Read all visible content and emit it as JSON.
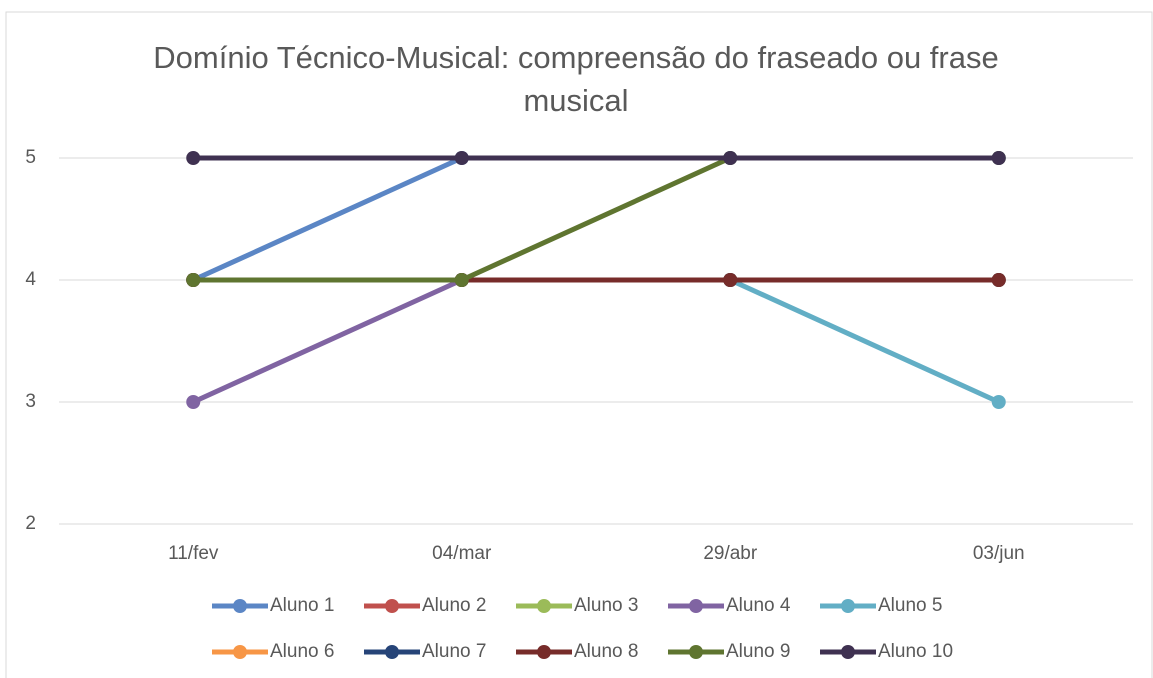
{
  "chart_data": {
    "type": "line",
    "title": "Domínio Técnico-Musical: compreensão do fraseado ou frase musical",
    "categories": [
      "11/fev",
      "04/mar",
      "29/abr",
      "03/jun"
    ],
    "series": [
      {
        "name": "Aluno 1",
        "color": "#5b86c5",
        "values": [
          4,
          5,
          5,
          5
        ]
      },
      {
        "name": "Aluno 2",
        "color": "#c0504d",
        "values": [
          4,
          4,
          4,
          4
        ]
      },
      {
        "name": "Aluno 3",
        "color": "#9bbb59",
        "values": [
          4,
          4,
          4,
          4
        ]
      },
      {
        "name": "Aluno 4",
        "color": "#8064a2",
        "values": [
          3,
          4,
          4,
          4
        ]
      },
      {
        "name": "Aluno 5",
        "color": "#62aec5",
        "values": [
          4,
          4,
          4,
          3
        ]
      },
      {
        "name": "Aluno 6",
        "color": "#f79646",
        "values": [
          4,
          4,
          4,
          4
        ]
      },
      {
        "name": "Aluno 7",
        "color": "#264478",
        "values": [
          4,
          4,
          4,
          4
        ]
      },
      {
        "name": "Aluno 8",
        "color": "#772c2a",
        "values": [
          4,
          4,
          4,
          4
        ]
      },
      {
        "name": "Aluno 9",
        "color": "#5f7530",
        "values": [
          4,
          4,
          5,
          5
        ]
      },
      {
        "name": "Aluno 10",
        "color": "#3f3151",
        "values": [
          5,
          5,
          5,
          5
        ]
      }
    ],
    "ylim": [
      2,
      5
    ],
    "yticks": [
      2,
      3,
      4,
      5
    ],
    "grid": true,
    "legend": "bottom"
  }
}
